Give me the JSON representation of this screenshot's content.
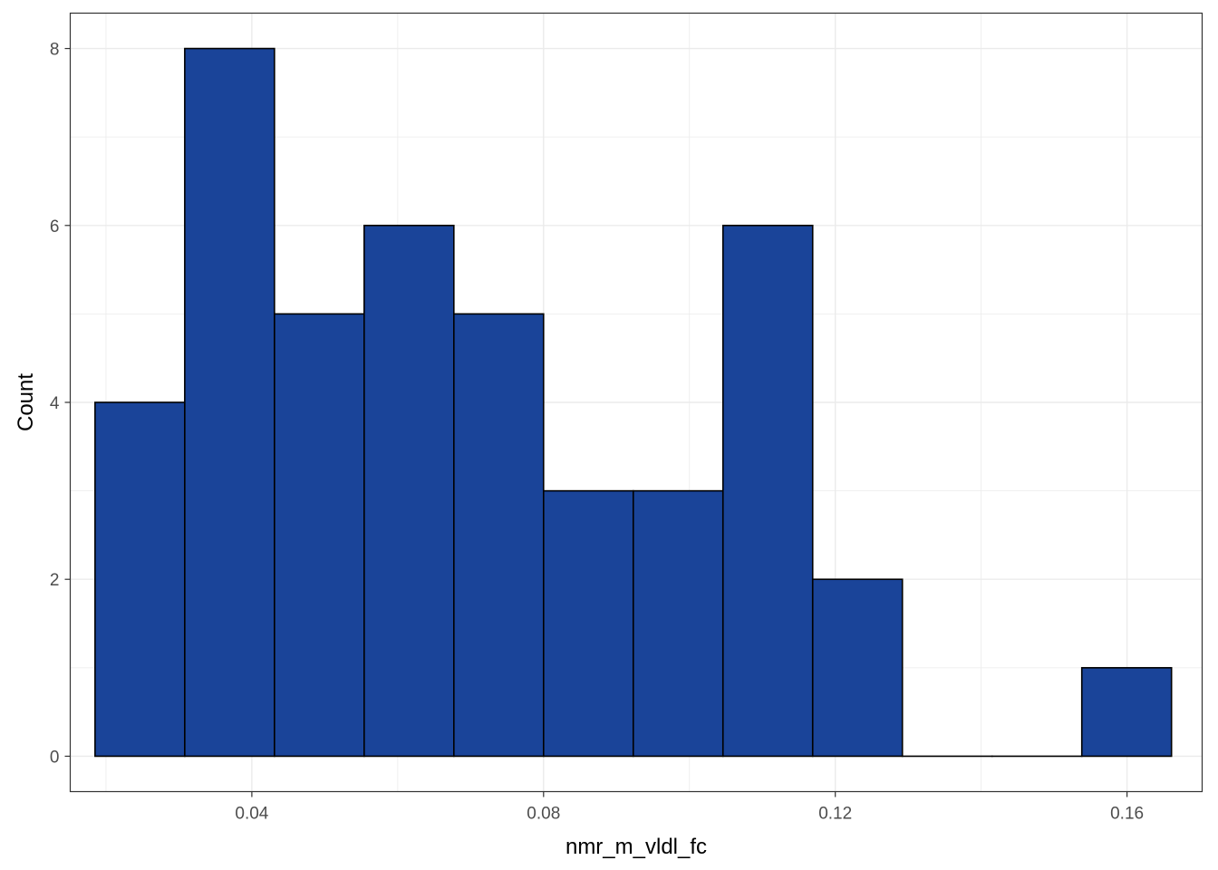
{
  "chart_data": {
    "type": "bar",
    "subtype": "histogram",
    "title": "",
    "xlabel": "nmr_m_vldl_fc",
    "ylabel": "Count",
    "xlim": [
      0.0151,
      0.1703
    ],
    "ylim": [
      -0.4,
      8.4
    ],
    "x_ticks": [
      0.04,
      0.08,
      0.12,
      0.16
    ],
    "x_tick_labels": [
      "0.04",
      "0.08",
      "0.12",
      "0.16"
    ],
    "y_ticks": [
      0,
      2,
      4,
      6,
      8
    ],
    "y_tick_labels": [
      "0",
      "2",
      "4",
      "6",
      "8"
    ],
    "bin_edges": [
      0.0185,
      0.0308,
      0.0431,
      0.0554,
      0.0677,
      0.08,
      0.0923,
      0.1046,
      0.1169,
      0.1292,
      0.1415,
      0.1538,
      0.1661
    ],
    "counts": [
      4,
      8,
      5,
      6,
      5,
      3,
      3,
      6,
      2,
      0,
      0,
      1
    ],
    "bar_fill": "#1a4499",
    "bar_outline": "#000000",
    "grid": true,
    "legend": "none"
  }
}
